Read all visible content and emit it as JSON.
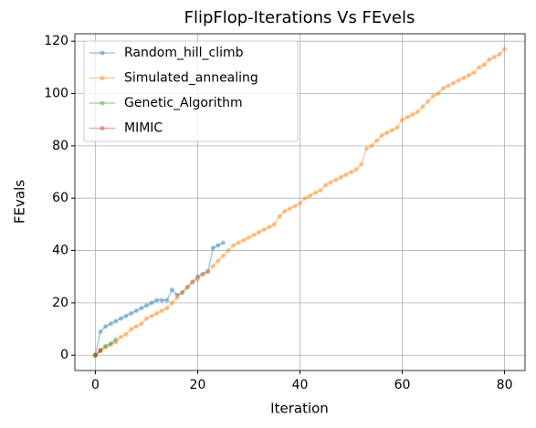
{
  "chart_data": {
    "type": "line",
    "title": "FlipFlop-Iterations Vs FEvels",
    "xlabel": "Iteration",
    "ylabel": "FEvals",
    "xlim": [
      -4,
      84
    ],
    "ylim": [
      -5.85,
      122.85
    ],
    "xticks": [
      0,
      20,
      40,
      60,
      80
    ],
    "yticks": [
      0,
      20,
      40,
      60,
      80,
      100,
      120
    ],
    "grid": true,
    "legend": "upper left",
    "series": [
      {
        "name": "Random_hill_climb",
        "color": "#1f77b4",
        "x": [
          0,
          1,
          2,
          3,
          4,
          5,
          6,
          7,
          8,
          9,
          10,
          11,
          12,
          13,
          14,
          15,
          16,
          17,
          18,
          19,
          20,
          21,
          22,
          23,
          24,
          25
        ],
        "values": [
          0,
          9,
          11,
          12,
          13,
          14,
          15,
          16,
          17,
          18,
          19,
          20,
          21,
          21,
          21,
          25,
          23,
          24,
          26,
          28,
          30,
          31,
          32,
          41,
          42,
          43
        ]
      },
      {
        "name": "Simulated_annealing",
        "color": "#ff7f0e",
        "x": [
          0,
          1,
          2,
          3,
          4,
          5,
          6,
          7,
          8,
          9,
          10,
          11,
          12,
          13,
          14,
          15,
          16,
          17,
          18,
          19,
          20,
          21,
          22,
          23,
          24,
          25,
          26,
          27,
          28,
          29,
          30,
          31,
          32,
          33,
          34,
          35,
          36,
          37,
          38,
          39,
          40,
          41,
          42,
          43,
          44,
          45,
          46,
          47,
          48,
          49,
          50,
          51,
          52,
          53,
          54,
          55,
          56,
          57,
          58,
          59,
          60,
          61,
          62,
          63,
          64,
          65,
          66,
          67,
          68,
          69,
          70,
          71,
          72,
          73,
          74,
          75,
          76,
          77,
          78,
          79,
          80
        ],
        "values": [
          0,
          2,
          3,
          4,
          5,
          7,
          8,
          10,
          11,
          12,
          14,
          15,
          16,
          17,
          18,
          20,
          22,
          24,
          26,
          28,
          29,
          31,
          32,
          34,
          36,
          38,
          40,
          42,
          43,
          44,
          45,
          46,
          47,
          48,
          49,
          50,
          53,
          55,
          56,
          57,
          58,
          60,
          61,
          62,
          63,
          65,
          66,
          67,
          68,
          69,
          70,
          71,
          73,
          79,
          80,
          82,
          84,
          85,
          86,
          87,
          90,
          91,
          92,
          93,
          95,
          97,
          99,
          100,
          102,
          103,
          104,
          105,
          106,
          107,
          108,
          110,
          111,
          113,
          114,
          115,
          117
        ]
      },
      {
        "name": "Genetic_Algorithm",
        "color": "#2ca02c",
        "x": [
          0,
          1,
          2,
          3,
          4
        ],
        "values": [
          0,
          1.5,
          3.5,
          4.5,
          6
        ]
      },
      {
        "name": "MIMIC",
        "color": "#d62728",
        "x": [
          0,
          1
        ],
        "values": [
          0,
          2
        ]
      }
    ]
  }
}
